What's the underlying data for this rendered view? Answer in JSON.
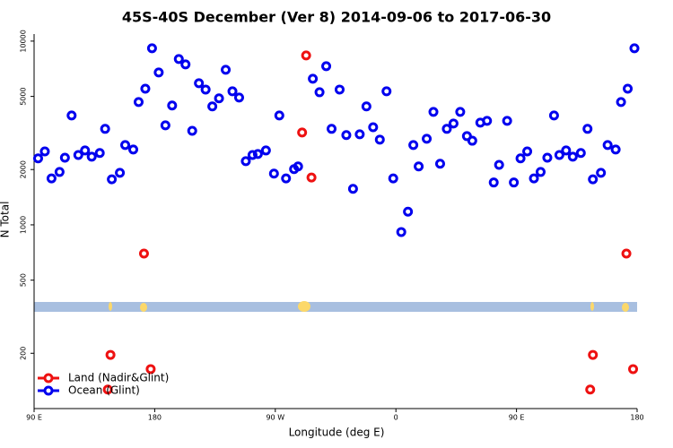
{
  "chart_data": {
    "type": "scatter",
    "title": "45S-40S December (Ver 8)   2014-09-06 to 2017-06-30",
    "xlabel": "Longitude (deg E)",
    "ylabel": "N Total",
    "xlim": [
      90,
      540
    ],
    "xticks": [
      {
        "value": 90,
        "label": "90 E"
      },
      180,
      {
        "value": 270,
        "label": "90 W"
      },
      {
        "value": 360,
        "label": "0"
      },
      {
        "value": 450,
        "label": "90 E"
      },
      {
        "value": 540,
        "label": "180"
      }
    ],
    "ylim": [
      100,
      11300
    ],
    "log_y": true,
    "yticks": [
      200,
      500,
      1000,
      2000,
      5000,
      10000
    ],
    "legend": "lower left",
    "series": [
      {
        "name": "Land (Nadir&Glint)",
        "color": "#ee1111",
        "x": [
          147,
          172,
          177,
          145,
          290,
          293,
          297,
          507,
          532,
          537,
          505
        ],
        "values": [
          196,
          698,
          164,
          127,
          3180,
          8360,
          1810,
          196,
          698,
          164,
          127
        ]
      },
      {
        "name": "Ocean (Glint)",
        "color": "#0000ee",
        "x": [
          93,
          98,
          103,
          109,
          113,
          118,
          123,
          128,
          133,
          139,
          143,
          148,
          154,
          158,
          164,
          168,
          173,
          178,
          183,
          188,
          193,
          198,
          203,
          208,
          213,
          218,
          223,
          228,
          233,
          238,
          243,
          248,
          253,
          257,
          263,
          269,
          273,
          278,
          284,
          287,
          298,
          303,
          308,
          312,
          318,
          323,
          328,
          333,
          338,
          343,
          348,
          353,
          358,
          364,
          369,
          373,
          377,
          383,
          388,
          393,
          398,
          403,
          408,
          413,
          417,
          423,
          428,
          433,
          437,
          443,
          448,
          453,
          458,
          463,
          468,
          473,
          478,
          482,
          487,
          492,
          498,
          503,
          507,
          513,
          518,
          524,
          528,
          533,
          538
        ],
        "values": [
          2300,
          2510,
          1790,
          1940,
          2320,
          3940,
          2400,
          2540,
          2350,
          2460,
          3330,
          1770,
          1920,
          2720,
          2570,
          4660,
          5510,
          9140,
          6750,
          3480,
          4460,
          7990,
          7470,
          3250,
          5900,
          5450,
          4410,
          4880,
          6980,
          5330,
          4930,
          2220,
          2400,
          2430,
          2540,
          1900,
          3940,
          1790,
          2010,
          2080,
          6240,
          5270,
          7300,
          3330,
          5450,
          3080,
          1570,
          3110,
          4410,
          3400,
          2910,
          5330,
          1790,
          914,
          1180,
          2720,
          2080,
          2940,
          4120,
          2150,
          3330,
          3560,
          4120,
          3040,
          2870,
          3600,
          3680,
          1700,
          2120,
          3680,
          1700,
          2300,
          2510,
          1790,
          1940,
          2320,
          3940,
          2400,
          2540,
          2350,
          2460,
          3330,
          1770,
          1920,
          2720,
          2570,
          4660,
          5510,
          9140
        ]
      }
    ]
  }
}
